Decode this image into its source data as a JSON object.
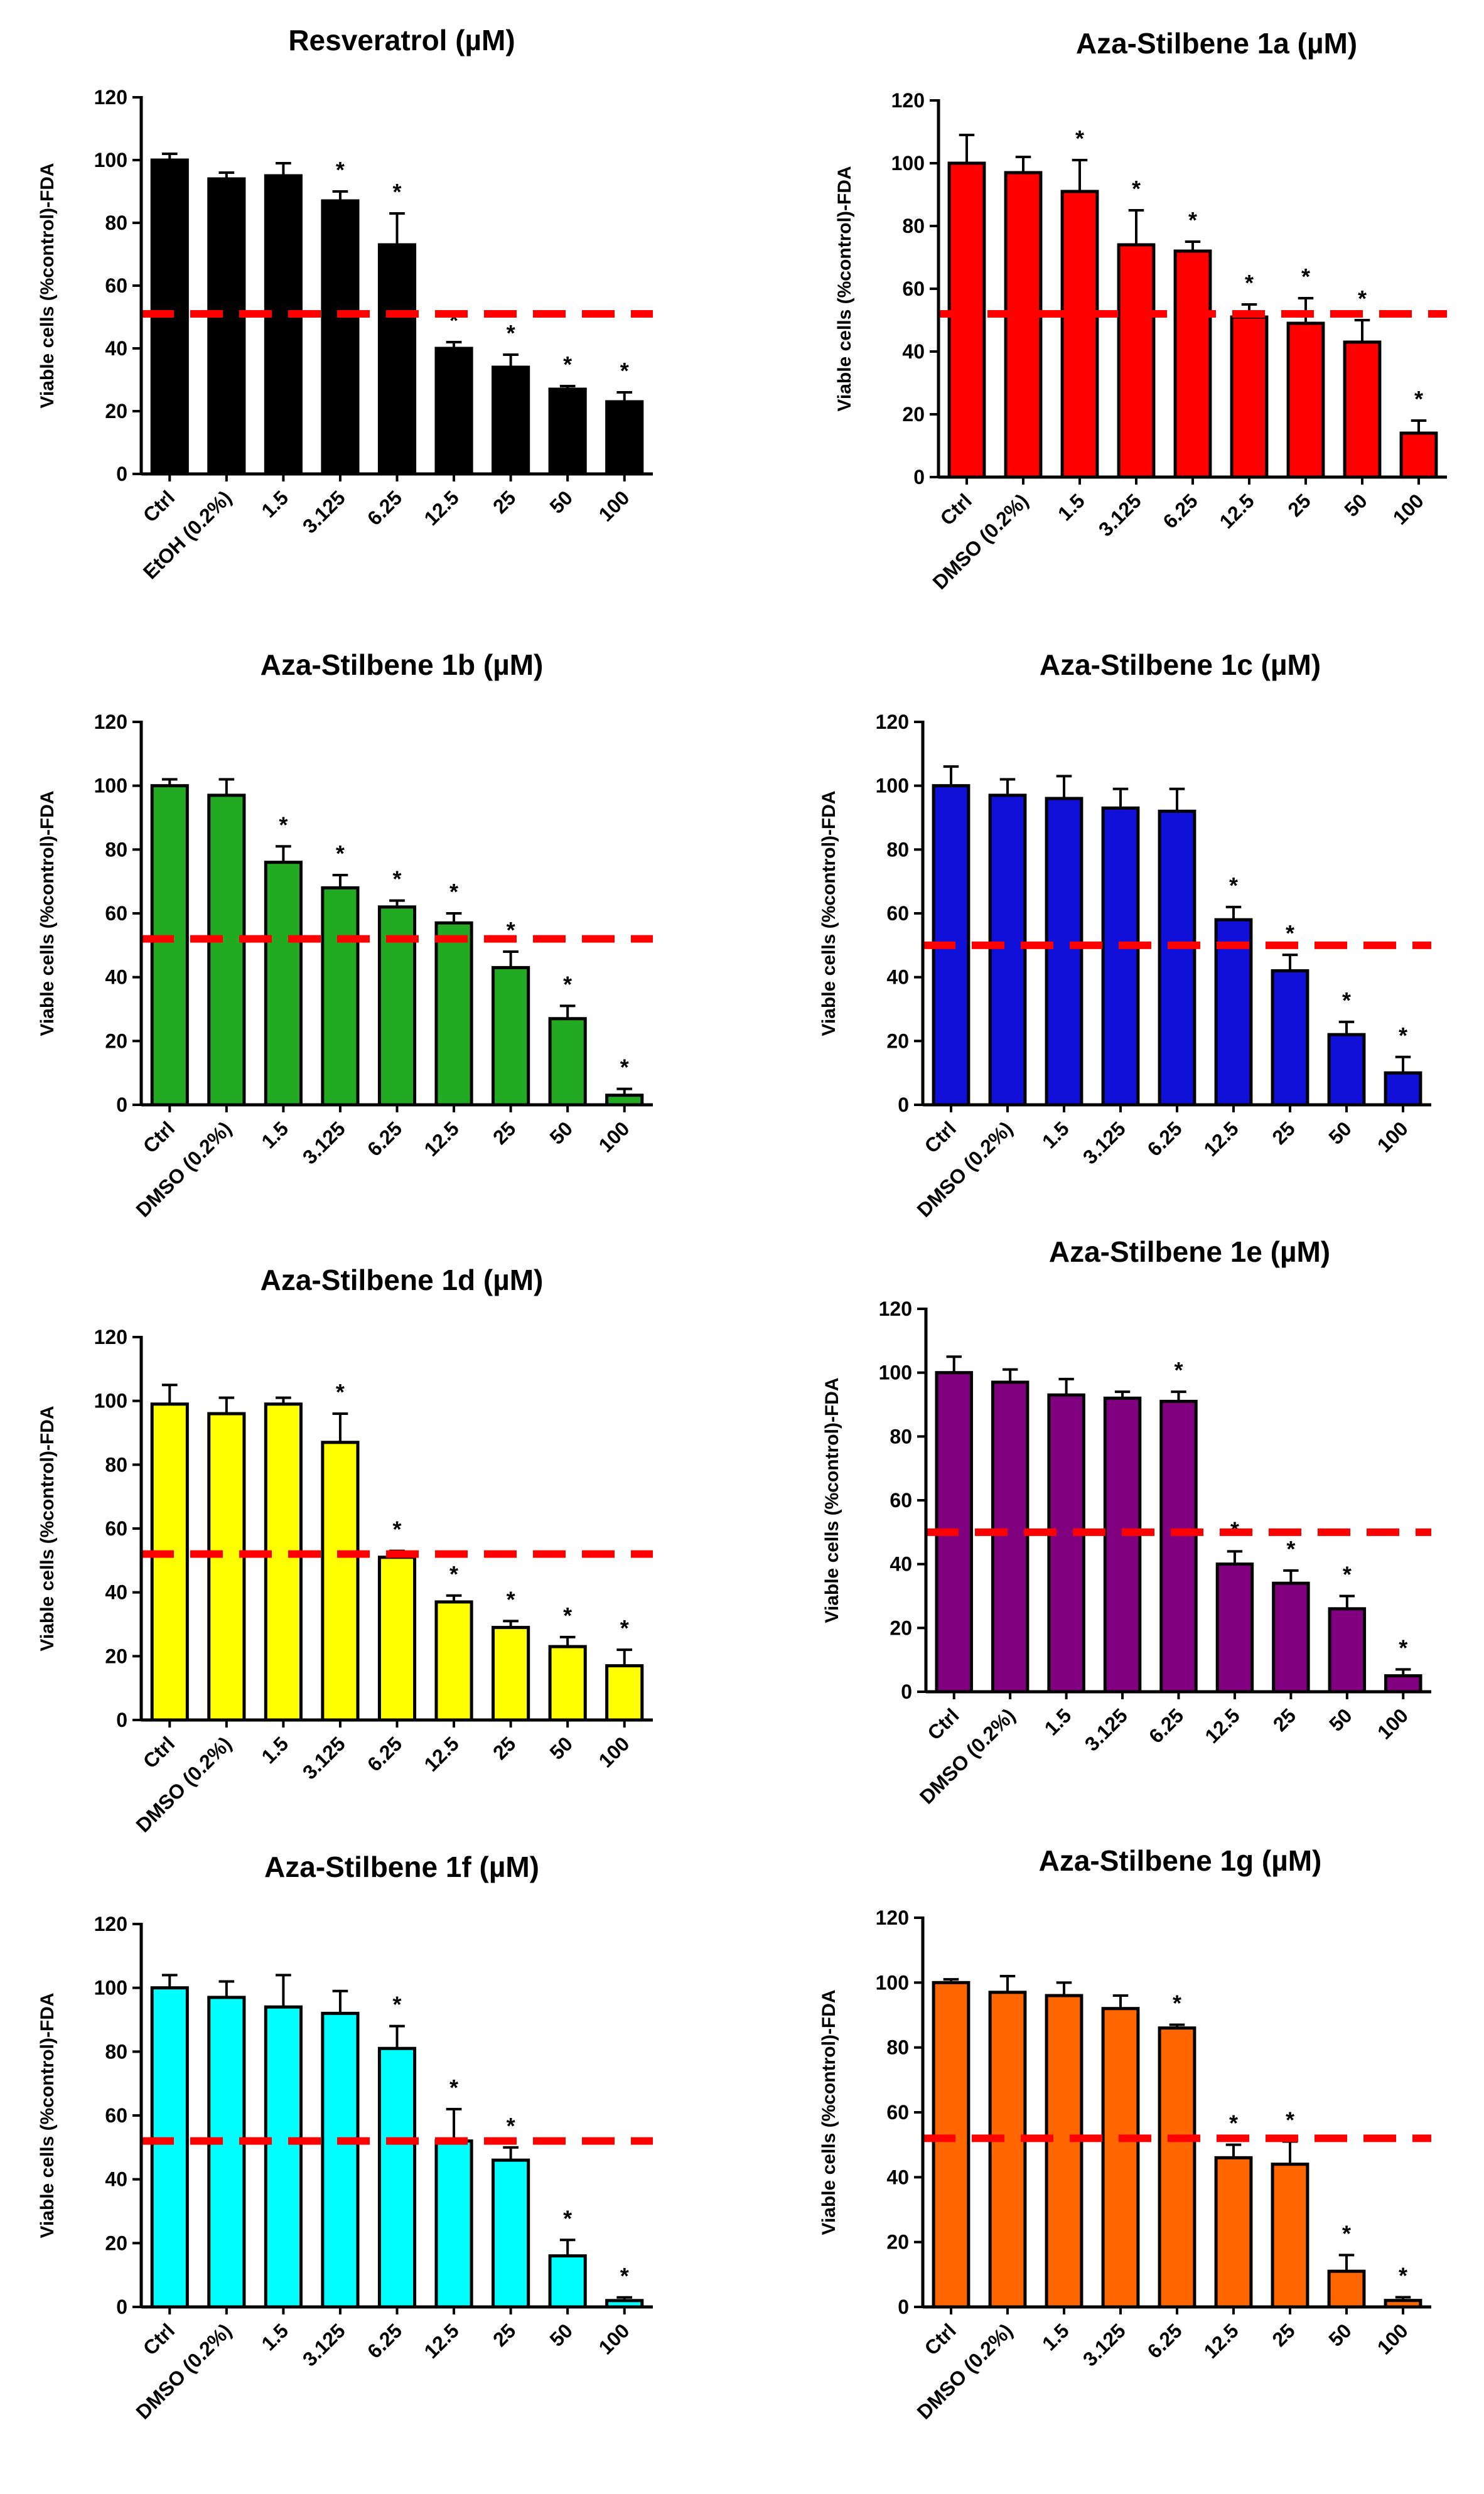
{
  "chart_data": [
    {
      "type": "bar",
      "title": "Resveratrol (µM)",
      "ylabel": "Viable cells (%control)-FDA",
      "xlabel": "",
      "ylim": [
        0,
        120
      ],
      "yticks": [
        0,
        20,
        40,
        60,
        80,
        100,
        120
      ],
      "categories": [
        "Ctrl",
        "EtOH (0.2%)",
        "1.5",
        "3.125",
        "6.25",
        "12.5",
        "25",
        "50",
        "100"
      ],
      "values": [
        100,
        94,
        95,
        87,
        73,
        40,
        34,
        27,
        23
      ],
      "errors": [
        2,
        2,
        4,
        3,
        10,
        2,
        4,
        1,
        3
      ],
      "significant": [
        "",
        "",
        "",
        "*",
        "*",
        "*",
        "*",
        "*",
        "*"
      ],
      "threshold": 51,
      "color": "#000000"
    },
    {
      "type": "bar",
      "title": "Aza-Stilbene 1a (µM)",
      "ylabel": "Viable cells (%control)-FDA",
      "xlabel": "",
      "ylim": [
        0,
        120
      ],
      "yticks": [
        0,
        20,
        40,
        60,
        80,
        100,
        120
      ],
      "categories": [
        "Ctrl",
        "DMSO (0.2%)",
        "1.5",
        "3.125",
        "6.25",
        "12.5",
        "25",
        "50",
        "100"
      ],
      "values": [
        100,
        97,
        91,
        74,
        72,
        51,
        49,
        43,
        14
      ],
      "errors": [
        9,
        5,
        10,
        11,
        3,
        4,
        8,
        7,
        4
      ],
      "significant": [
        "",
        "",
        "*",
        "*",
        "*",
        "*",
        "*",
        "*",
        "*"
      ],
      "threshold": 52,
      "color": "#ff0000"
    },
    {
      "type": "bar",
      "title": "Aza-Stilbene 1b (µM)",
      "ylabel": "Viable cells (%control)-FDA",
      "xlabel": "",
      "ylim": [
        0,
        120
      ],
      "yticks": [
        0,
        20,
        40,
        60,
        80,
        100,
        120
      ],
      "categories": [
        "Ctrl",
        "DMSO (0.2%)",
        "1.5",
        "3.125",
        "6.25",
        "12.5",
        "25",
        "50",
        "100"
      ],
      "values": [
        100,
        97,
        76,
        68,
        62,
        57,
        43,
        27,
        3
      ],
      "errors": [
        2,
        5,
        5,
        4,
        2,
        3,
        5,
        4,
        2
      ],
      "significant": [
        "",
        "",
        "*",
        "*",
        "*",
        "*",
        "*",
        "*",
        "*"
      ],
      "threshold": 52,
      "color": "#22aa22"
    },
    {
      "type": "bar",
      "title": "Aza-Stilbene 1c (µM)",
      "ylabel": "Viable cells (%control)-FDA",
      "xlabel": "",
      "ylim": [
        0,
        120
      ],
      "yticks": [
        0,
        20,
        40,
        60,
        80,
        100,
        120
      ],
      "categories": [
        "Ctrl",
        "DMSO (0.2%)",
        "1.5",
        "3.125",
        "6.25",
        "12.5",
        "25",
        "50",
        "100"
      ],
      "values": [
        100,
        97,
        96,
        93,
        92,
        58,
        42,
        22,
        10
      ],
      "errors": [
        6,
        5,
        7,
        6,
        7,
        4,
        5,
        4,
        5
      ],
      "significant": [
        "",
        "",
        "",
        "",
        "",
        "*",
        "*",
        "*",
        "*"
      ],
      "threshold": 50,
      "color": "#1010d8"
    },
    {
      "type": "bar",
      "title": "Aza-Stilbene 1d (µM)",
      "ylabel": "Viable cells (%control)-FDA",
      "xlabel": "",
      "ylim": [
        0,
        120
      ],
      "yticks": [
        0,
        20,
        40,
        60,
        80,
        100,
        120
      ],
      "categories": [
        "Ctrl",
        "DMSO (0.2%)",
        "1.5",
        "3.125",
        "6.25",
        "12.5",
        "25",
        "50",
        "100"
      ],
      "values": [
        99,
        96,
        99,
        87,
        51,
        37,
        29,
        23,
        17
      ],
      "errors": [
        6,
        5,
        2,
        9,
        2,
        2,
        2,
        3,
        5
      ],
      "significant": [
        "",
        "",
        "",
        "*",
        "*",
        "*",
        "*",
        "*",
        "*"
      ],
      "threshold": 52,
      "color": "#ffff00"
    },
    {
      "type": "bar",
      "title": "Aza-Stilbene 1e (µM)",
      "ylabel": "Viable cells (%control)-FDA",
      "xlabel": "",
      "ylim": [
        0,
        120
      ],
      "yticks": [
        0,
        20,
        40,
        60,
        80,
        100,
        120
      ],
      "categories": [
        "Ctrl",
        "DMSO (0.2%)",
        "1.5",
        "3.125",
        "6.25",
        "12.5",
        "25",
        "50",
        "100"
      ],
      "values": [
        100,
        97,
        93,
        92,
        91,
        40,
        34,
        26,
        5
      ],
      "errors": [
        5,
        4,
        5,
        2,
        3,
        4,
        4,
        4,
        2
      ],
      "significant": [
        "",
        "",
        "",
        "",
        "*",
        "*",
        "*",
        "*",
        "*"
      ],
      "threshold": 50,
      "color": "#800080"
    },
    {
      "type": "bar",
      "title": "Aza-Stilbene 1f (µM)",
      "ylabel": "Viable cells (%control)-FDA",
      "xlabel": "",
      "ylim": [
        0,
        120
      ],
      "yticks": [
        0,
        20,
        40,
        60,
        80,
        100,
        120
      ],
      "categories": [
        "Ctrl",
        "DMSO (0.2%)",
        "1.5",
        "3.125",
        "6.25",
        "12.5",
        "25",
        "50",
        "100"
      ],
      "values": [
        100,
        97,
        94,
        92,
        81,
        52,
        46,
        16,
        2
      ],
      "errors": [
        4,
        5,
        10,
        7,
        7,
        10,
        4,
        5,
        1
      ],
      "significant": [
        "",
        "",
        "",
        "",
        "*",
        "*",
        "*",
        "*",
        "*"
      ],
      "threshold": 52,
      "color": "#00ffff"
    },
    {
      "type": "bar",
      "title": "Aza-Stilbene 1g (µM)",
      "ylabel": "Viable cells (%control)-FDA",
      "xlabel": "",
      "ylim": [
        0,
        120
      ],
      "yticks": [
        0,
        20,
        40,
        60,
        80,
        100,
        120
      ],
      "categories": [
        "Ctrl",
        "DMSO (0.2%)",
        "1.5",
        "3.125",
        "6.25",
        "12.5",
        "25",
        "50",
        "100"
      ],
      "values": [
        100,
        97,
        96,
        92,
        86,
        46,
        44,
        11,
        2
      ],
      "errors": [
        1,
        5,
        4,
        4,
        1,
        4,
        7,
        5,
        1
      ],
      "significant": [
        "",
        "",
        "",
        "",
        "*",
        "*",
        "*",
        "*",
        "*"
      ],
      "threshold": 52,
      "color": "#ff6600"
    }
  ]
}
